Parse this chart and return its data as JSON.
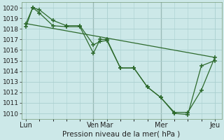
{
  "title": "Pression niveau de la mer( hPa )",
  "background_color": "#cce8e8",
  "grid_color": "#aacfcf",
  "line_color": "#2d6a2d",
  "marker_color": "#2d6a2d",
  "ylim": [
    1009.5,
    1020.5
  ],
  "yticks": [
    1010,
    1011,
    1012,
    1013,
    1014,
    1015,
    1016,
    1017,
    1018,
    1019,
    1020
  ],
  "xtick_labels": [
    "Lun",
    "Ven",
    "Mar",
    "Mer",
    "Jeu"
  ],
  "xtick_positions": [
    0,
    30,
    36,
    60,
    84
  ],
  "vline_positions": [
    30,
    60
  ],
  "xlim": [
    -2,
    87
  ],
  "line1_x": [
    0,
    3,
    6,
    12,
    18,
    24,
    30,
    33,
    36,
    42,
    48,
    54,
    60,
    66,
    72,
    78,
    84
  ],
  "line1_y": [
    1018.5,
    1020.0,
    1019.8,
    1018.8,
    1018.3,
    1018.3,
    1016.5,
    1016.8,
    1016.9,
    1014.3,
    1014.3,
    1012.5,
    1011.5,
    1010.1,
    1010.1,
    1012.2,
    1015.3
  ],
  "line2_x": [
    0,
    3,
    6,
    12,
    18,
    24,
    30,
    33,
    36,
    42,
    48,
    54,
    60,
    66,
    72,
    78,
    84
  ],
  "line2_y": [
    1018.2,
    1020.0,
    1019.5,
    1018.3,
    1018.2,
    1018.2,
    1015.7,
    1017.0,
    1017.0,
    1014.3,
    1014.3,
    1012.5,
    1011.5,
    1010.0,
    1009.9,
    1014.5,
    1015.0
  ],
  "line3_x": [
    0,
    84
  ],
  "line3_y": [
    1018.5,
    1015.3
  ],
  "figwidth": 3.2,
  "figheight": 2.0,
  "dpi": 100
}
